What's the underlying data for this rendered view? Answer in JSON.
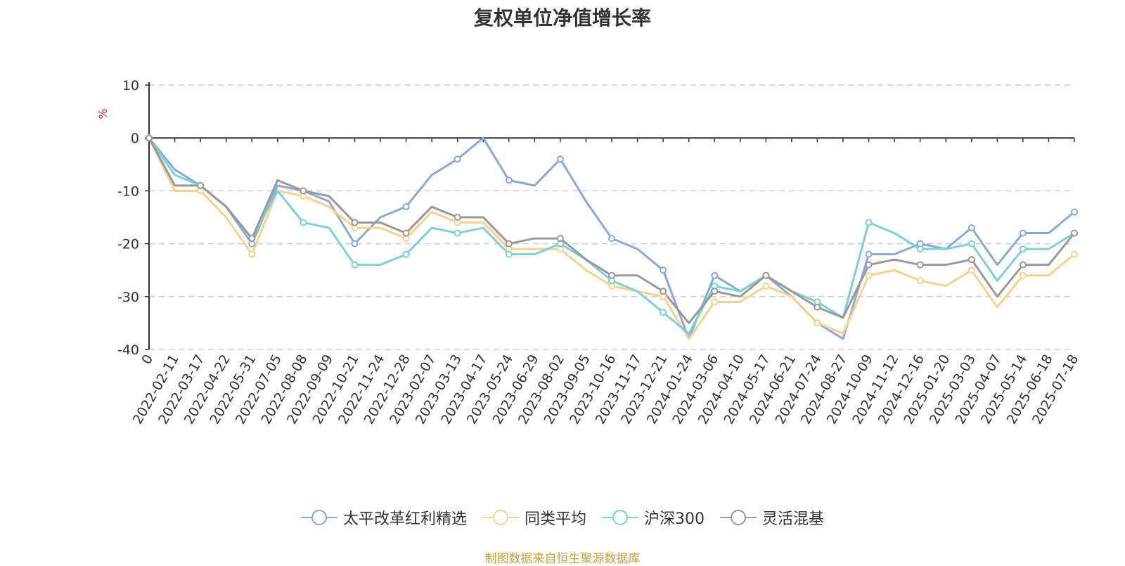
{
  "chart_data": {
    "type": "line",
    "title": "复权单位净值增长率",
    "ylabel": "%",
    "ylim": [
      -40,
      10
    ],
    "y_ticks": [
      10,
      0,
      -10,
      -20,
      -30,
      -40
    ],
    "grid": true,
    "legend_position": "bottom",
    "x_tick_labels": [
      "0",
      "2022-02-11",
      "2022-03-17",
      "2022-04-22",
      "2022-05-31",
      "2022-07-05",
      "2022-08-08",
      "2022-09-09",
      "2022-10-21",
      "2022-11-24",
      "2022-12-28",
      "2023-02-07",
      "2023-03-13",
      "2023-04-17",
      "2023-05-24",
      "2023-06-29",
      "2023-08-02",
      "2023-09-05",
      "2023-10-16",
      "2023-11-17",
      "2023-12-21",
      "2024-01-24",
      "2024-03-06",
      "2024-04-10",
      "2024-05-17",
      "2024-06-21",
      "2024-07-24",
      "2024-08-27",
      "2024-10-09",
      "2024-11-12",
      "2024-12-16",
      "2025-01-20",
      "2025-03-03",
      "2025-04-07",
      "2025-05-14",
      "2025-06-18",
      "2025-07-18"
    ],
    "series": [
      {
        "name": "太平改革红利精选",
        "color": "#8aa8d8",
        "values": [
          0,
          -6,
          -9,
          -13,
          -20,
          -9,
          -10,
          -12,
          -20,
          -15,
          -13,
          -7,
          -4,
          0,
          -8,
          -9,
          -4,
          -12,
          -19,
          -21,
          -25,
          -38,
          -26,
          -29,
          -26,
          -30,
          -35,
          -38,
          -22,
          -22,
          -20,
          -21,
          -17,
          -24,
          -18,
          -18,
          -14
        ]
      },
      {
        "name": "同类平均",
        "color": "#f8d090",
        "values": [
          0,
          -10,
          -10,
          -15,
          -22,
          -10,
          -11,
          -13,
          -17,
          -17,
          -19,
          -14,
          -16,
          -16,
          -21,
          -21,
          -21,
          -25,
          -28,
          -29,
          -30,
          -38,
          -31,
          -31,
          -28,
          -30,
          -35,
          -37,
          -26,
          -25,
          -27,
          -28,
          -25,
          -32,
          -26,
          -26,
          -22
        ]
      },
      {
        "name": "沪深300",
        "color": "#7fd0d0",
        "values": [
          0,
          -7,
          -9,
          -13,
          -19,
          -10,
          -16,
          -17,
          -24,
          -24,
          -22,
          -17,
          -18,
          -17,
          -22,
          -22,
          -20,
          -23,
          -27,
          -29,
          -33,
          -37,
          -28,
          -29,
          -26,
          -29,
          -31,
          -34,
          -16,
          -18,
          -21,
          -21,
          -20,
          -27,
          -21,
          -21,
          -18
        ]
      },
      {
        "name": "灵活混基",
        "color": "#999999",
        "values": [
          0,
          -9,
          -9,
          -13,
          -19,
          -8,
          -10,
          -11,
          -16,
          -16,
          -18,
          -13,
          -15,
          -15,
          -20,
          -19,
          -19,
          -23,
          -26,
          -26,
          -29,
          -35,
          -29,
          -30,
          -26,
          -29,
          -32,
          -34,
          -24,
          -23,
          -24,
          -24,
          -23,
          -30,
          -24,
          -24,
          -18
        ]
      }
    ]
  },
  "legend": [
    "太平改革红利精选",
    "同类平均",
    "沪深300",
    "灵活混基"
  ],
  "footer": {
    "source": "制图数据来自恒生聚源数据库"
  }
}
